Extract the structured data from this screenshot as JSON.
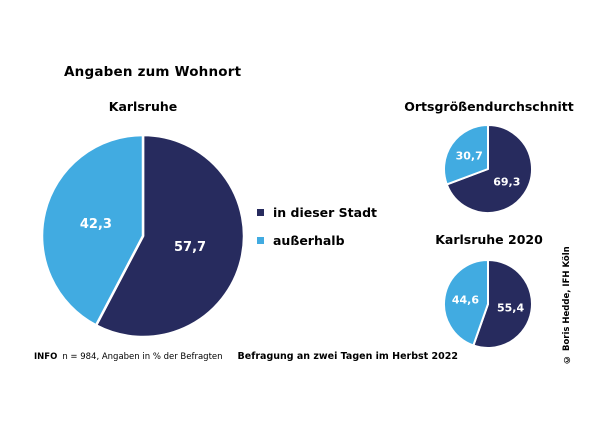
{
  "header": {
    "title": "Angaben zum Wohnort"
  },
  "colors": {
    "dark_blue": "#272b5e",
    "light_blue": "#41abe1",
    "label_text": "#ffffff",
    "background": "#ffffff"
  },
  "legend": {
    "items": [
      {
        "label": "in dieser Stadt",
        "color": "#272b5e"
      },
      {
        "label": "außerhalb",
        "color": "#41abe1"
      }
    ]
  },
  "chart_data": [
    {
      "type": "pie",
      "title": "Karlsruhe",
      "unit": "% der Befragten",
      "slices": [
        {
          "label": "in dieser Stadt",
          "value": 57.7,
          "display": "57,7",
          "color": "#272b5e"
        },
        {
          "label": "außerhalb",
          "value": 42.3,
          "display": "42,3",
          "color": "#41abe1"
        }
      ],
      "start_angle_deg": 0,
      "direction": "clockwise"
    },
    {
      "type": "pie",
      "title": "Ortsgrößendurchschnitt",
      "unit": "% der Befragten",
      "slices": [
        {
          "label": "in dieser Stadt",
          "value": 69.3,
          "display": "69,3",
          "color": "#272b5e"
        },
        {
          "label": "außerhalb",
          "value": 30.7,
          "display": "30,7",
          "color": "#41abe1"
        }
      ],
      "start_angle_deg": 0,
      "direction": "clockwise"
    },
    {
      "type": "pie",
      "title": "Karlsruhe 2020",
      "unit": "% der Befragten",
      "slices": [
        {
          "label": "in dieser Stadt",
          "value": 55.4,
          "display": "55,4",
          "color": "#272b5e"
        },
        {
          "label": "außerhalb",
          "value": 44.6,
          "display": "44,6",
          "color": "#41abe1"
        }
      ],
      "start_angle_deg": 0,
      "direction": "clockwise"
    }
  ],
  "footer": {
    "info_label": "INFO",
    "info_text": "n = 984, Angaben in % der Befragten",
    "note": "Befragung an zwei Tagen im Herbst 2022"
  },
  "copyright": "© Boris Hedde, IFH Köln"
}
